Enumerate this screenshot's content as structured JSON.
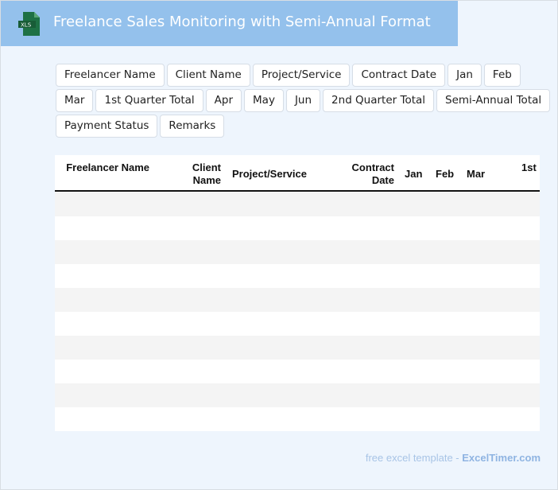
{
  "header": {
    "title": "Freelance Sales Monitoring with Semi-Annual Format",
    "icon": "xls-file-icon",
    "icon_label": "XLS"
  },
  "fields": [
    "Freelancer Name",
    "Client Name",
    "Project/Service",
    "Contract Date",
    "Jan",
    "Feb",
    "Mar",
    "1st Quarter Total",
    "Apr",
    "May",
    "Jun",
    "2nd Quarter Total",
    "Semi-Annual Total",
    "Payment Status",
    "Remarks"
  ],
  "table": {
    "headers": {
      "freelancer": "Freelancer Name",
      "client": "Client Name",
      "project": "Project/Service",
      "date": "Contract Date",
      "jan": "Jan",
      "feb": "Feb",
      "mar": "Mar",
      "q1": "1st"
    },
    "row_count": 10
  },
  "footer": {
    "text": "free excel template - ",
    "brand": "ExcelTimer.com"
  },
  "colors": {
    "header": "#94c1ec",
    "row_alt": "#f4f4f4",
    "excel_green": "#1e7145"
  }
}
